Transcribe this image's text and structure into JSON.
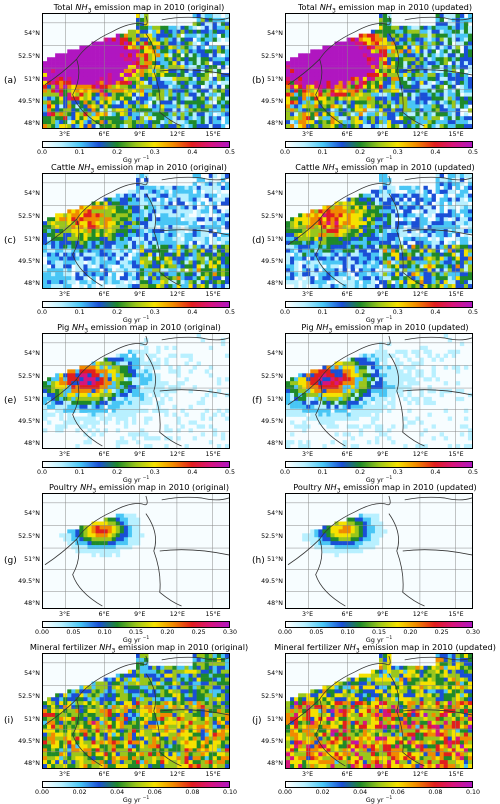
{
  "panels": [
    {
      "label": "(a)",
      "title_pre": "Total ",
      "title_post": " emission map in 2010 (original)",
      "vmax": 0.5,
      "ticks": [
        "0.0",
        "0.1",
        "0.2",
        "0.3",
        "0.4",
        "0.5"
      ],
      "intensity": 0.75,
      "style": "total"
    },
    {
      "label": "(b)",
      "title_pre": "Total ",
      "title_post": " emission map in 2010 (updated)",
      "vmax": 0.5,
      "ticks": [
        "0.0",
        "0.1",
        "0.2",
        "0.3",
        "0.4",
        "0.5"
      ],
      "intensity": 0.75,
      "style": "total"
    },
    {
      "label": "(c)",
      "title_pre": "Cattle ",
      "title_post": " emission map in 2010 (original)",
      "vmax": 0.5,
      "ticks": [
        "0.0",
        "0.1",
        "0.2",
        "0.3",
        "0.4",
        "0.5"
      ],
      "intensity": 0.4,
      "style": "cattle"
    },
    {
      "label": "(d)",
      "title_pre": "Cattle ",
      "title_post": " emission map in 2010 (updated)",
      "vmax": 0.5,
      "ticks": [
        "0.0",
        "0.1",
        "0.2",
        "0.3",
        "0.4",
        "0.5"
      ],
      "intensity": 0.45,
      "style": "cattle"
    },
    {
      "label": "(e)",
      "title_pre": "Pig ",
      "title_post": " emission map in 2010 (original)",
      "vmax": 0.5,
      "ticks": [
        "0.0",
        "0.1",
        "0.2",
        "0.3",
        "0.4",
        "0.5"
      ],
      "intensity": 0.3,
      "style": "pig"
    },
    {
      "label": "(f)",
      "title_pre": "Pig ",
      "title_post": " emission map in 2010 (updated)",
      "vmax": 0.5,
      "ticks": [
        "0.0",
        "0.1",
        "0.2",
        "0.3",
        "0.4",
        "0.5"
      ],
      "intensity": 0.3,
      "style": "pig"
    },
    {
      "label": "(g)",
      "title_pre": "Poultry ",
      "title_post": " emission map in 2010 (original)",
      "vmax": 0.3,
      "ticks": [
        "0.00",
        "0.05",
        "0.10",
        "0.15",
        "0.20",
        "0.25",
        "0.30"
      ],
      "intensity": 0.25,
      "style": "poultry"
    },
    {
      "label": "(h)",
      "title_pre": "Poultry ",
      "title_post": " emission map in 2010 (updated)",
      "vmax": 0.3,
      "ticks": [
        "0.00",
        "0.05",
        "0.10",
        "0.15",
        "0.20",
        "0.25",
        "0.30"
      ],
      "intensity": 0.2,
      "style": "poultry"
    },
    {
      "label": "(i)",
      "title_pre": "Mineral fertilizer ",
      "title_post": " emission map in 2010 (original)",
      "vmax": 0.1,
      "ticks": [
        "0.00",
        "0.02",
        "0.04",
        "0.06",
        "0.08",
        "0.10"
      ],
      "intensity": 0.4,
      "style": "mineral"
    },
    {
      "label": "(j)",
      "title_pre": "Mineral fertilizer ",
      "title_post": " emission map in 2010 (updated)",
      "vmax": 0.1,
      "ticks": [
        "0.00",
        "0.02",
        "0.04",
        "0.06",
        "0.08",
        "0.10"
      ],
      "intensity": 0.5,
      "style": "mineral"
    }
  ],
  "species": {
    "base": "NH",
    "sub": "3"
  },
  "lat_labels": [
    "54°N",
    "52.5°N",
    "51°N",
    "49.5°N",
    "48°N"
  ],
  "lon_labels": [
    "3°E",
    "6°E",
    "9°E",
    "12°E",
    "15°E"
  ],
  "unit": {
    "base": "Gg yr",
    "sup": "−1"
  },
  "colormap": [
    "#ffffff",
    "#b8f0ff",
    "#49c6f5",
    "#1a4fd6",
    "#1f8a2a",
    "#9ac61c",
    "#f5e100",
    "#f08a00",
    "#e11e1e",
    "#d6157d",
    "#b016c0"
  ]
}
